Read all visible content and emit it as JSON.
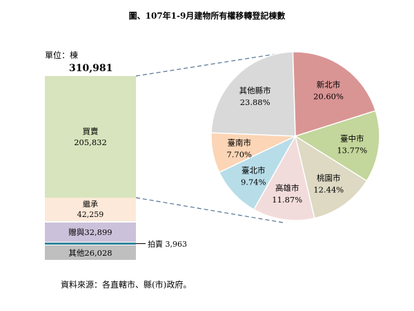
{
  "chart_data": [
    {
      "type": "bar",
      "stacked": true,
      "title": "圖、107年1-9月建物所有權移轉登記棟數",
      "unit_label": "單位：棟",
      "total": "310,981",
      "segments": [
        {
          "label": "買賣",
          "value": 205832,
          "display": "205,832",
          "color": "#d7e4bd"
        },
        {
          "label": "繼承",
          "value": 42259,
          "display": "42,259",
          "color": "#fde9d9"
        },
        {
          "label": "贈與",
          "value": 32899,
          "display": "32,899",
          "color": "#ccc1da"
        },
        {
          "label": "拍賣",
          "value": 3963,
          "display": "3,963",
          "color": "#31859c"
        },
        {
          "label": "其他",
          "value": 26028,
          "display": "26,028",
          "color": "#bfbfbf"
        }
      ]
    },
    {
      "type": "pie",
      "breakdown_of": "買賣",
      "slices": [
        {
          "label": "新北市",
          "value": 20.6,
          "display": "20.60%",
          "color": "#d99594"
        },
        {
          "label": "臺中市",
          "value": 13.77,
          "display": "13.77%",
          "color": "#c3d69b"
        },
        {
          "label": "桃園市",
          "value": 12.44,
          "display": "12.44%",
          "color": "#ddd9c3"
        },
        {
          "label": "高雄市",
          "value": 11.87,
          "display": "11.87%",
          "color": "#f2dcdb"
        },
        {
          "label": "臺北市",
          "value": 9.74,
          "display": "9.74%",
          "color": "#b7dde8"
        },
        {
          "label": "臺南市",
          "value": 7.7,
          "display": "7.70%",
          "color": "#fbd5b5"
        },
        {
          "label": "其他縣市",
          "value": 23.88,
          "display": "23.88%",
          "color": "#d9d9d9"
        }
      ]
    }
  ],
  "source": "資料來源：各直轄市、縣(市)政府。"
}
